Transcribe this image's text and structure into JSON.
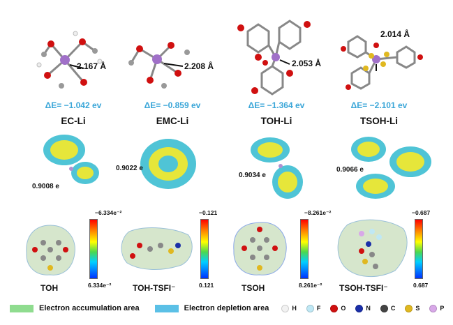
{
  "complexes": [
    {
      "distance": "2.167 Å",
      "energy": "ΔE= −1.042 ev",
      "name": "EC-Li",
      "charge": "0.9008 e"
    },
    {
      "distance": "2.208 Å",
      "energy": "ΔE= −0.859 ev",
      "name": "EMC-Li",
      "charge": "0.9022 e"
    },
    {
      "distance": "2.053 Å",
      "energy": "ΔE= −1.364 ev",
      "name": "TOH-Li",
      "charge": "0.9034 e"
    },
    {
      "distance": "2.014 Å",
      "energy": "ΔE= −2.101 ev",
      "name": "TSOH-Li",
      "charge": "0.9066 e"
    }
  ],
  "esp_maps": [
    {
      "name": "TOH",
      "max": "−6.334e⁻²",
      "min": "6.334e⁻²"
    },
    {
      "name": "TOH-TSFI⁻",
      "max": "−0.121",
      "min": "0.121"
    },
    {
      "name": "TSOH",
      "max": "−8.261e⁻²",
      "min": "8.261e⁻²"
    },
    {
      "name": "TSOH-TSFI⁻",
      "max": "−0.687",
      "min": "0.687"
    }
  ],
  "legend": {
    "accumulation": "Electron accumulation area",
    "depletion": "Electron depletion area",
    "accumulation_color": "#8fdc8f",
    "depletion_color": "#5bc0e6",
    "atoms": [
      {
        "symbol": "H",
        "color": "#f2f2f2"
      },
      {
        "symbol": "F",
        "color": "#bfe8f5"
      },
      {
        "symbol": "O",
        "color": "#d01010"
      },
      {
        "symbol": "N",
        "color": "#1a2ea8"
      },
      {
        "symbol": "C",
        "color": "#444444"
      },
      {
        "symbol": "S",
        "color": "#e0b820"
      },
      {
        "symbol": "P",
        "color": "#d8a8e8"
      }
    ]
  }
}
